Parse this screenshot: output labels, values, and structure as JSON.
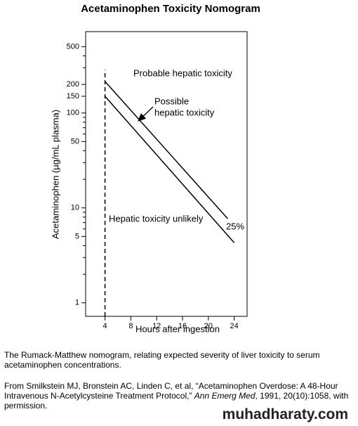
{
  "chart_data": {
    "type": "line",
    "title": "Acetaminophen Toxicity Nomogram",
    "ylabel": "Acetaminophen (µg/mL plasma)",
    "xlabel": "Hours after ingestion",
    "yscale": "log",
    "xlim": [
      1,
      26
    ],
    "xticks": [
      4,
      8,
      12,
      16,
      20,
      24
    ],
    "ylim": [
      0.72,
      720
    ],
    "yticks": [
      1,
      5,
      10,
      50,
      100,
      150,
      200,
      500
    ],
    "yminorticks": [
      2,
      3,
      4,
      6,
      7,
      8,
      9,
      20,
      30,
      40,
      60,
      70,
      80,
      90,
      300,
      400
    ],
    "grid": false,
    "series": [
      {
        "color": "#000000",
        "x": [
          4,
          23
        ],
        "values": [
          215,
          7.7
        ]
      },
      {
        "color": "#000000",
        "x": [
          4,
          24
        ],
        "values": [
          150,
          4.3
        ]
      }
    ],
    "threshold_line": {
      "x": 4,
      "y": [
        0.72,
        285
      ]
    },
    "annotations": [
      "Probable hepatic toxicity",
      "Possible",
      "hepatic toxicity",
      "Hepatic toxicity unlikely",
      "25%"
    ]
  },
  "caption": "The Rumack-Matthew nomogram, relating expected severity of liver toxicity to serum acetaminophen concentrations.",
  "citation": {
    "before": "From Smilkstein MJ, Bronstein AC, Linden C, et al, “Acetaminophen Overdose:  A 48-Hour Intravenous N-Acetylcysteine Treatment Protocol,” ",
    "journal": "Ann Emerg Med",
    "after": ", 1991, 20(10):1058, with permission."
  },
  "watermark": "muhadharaty.com"
}
